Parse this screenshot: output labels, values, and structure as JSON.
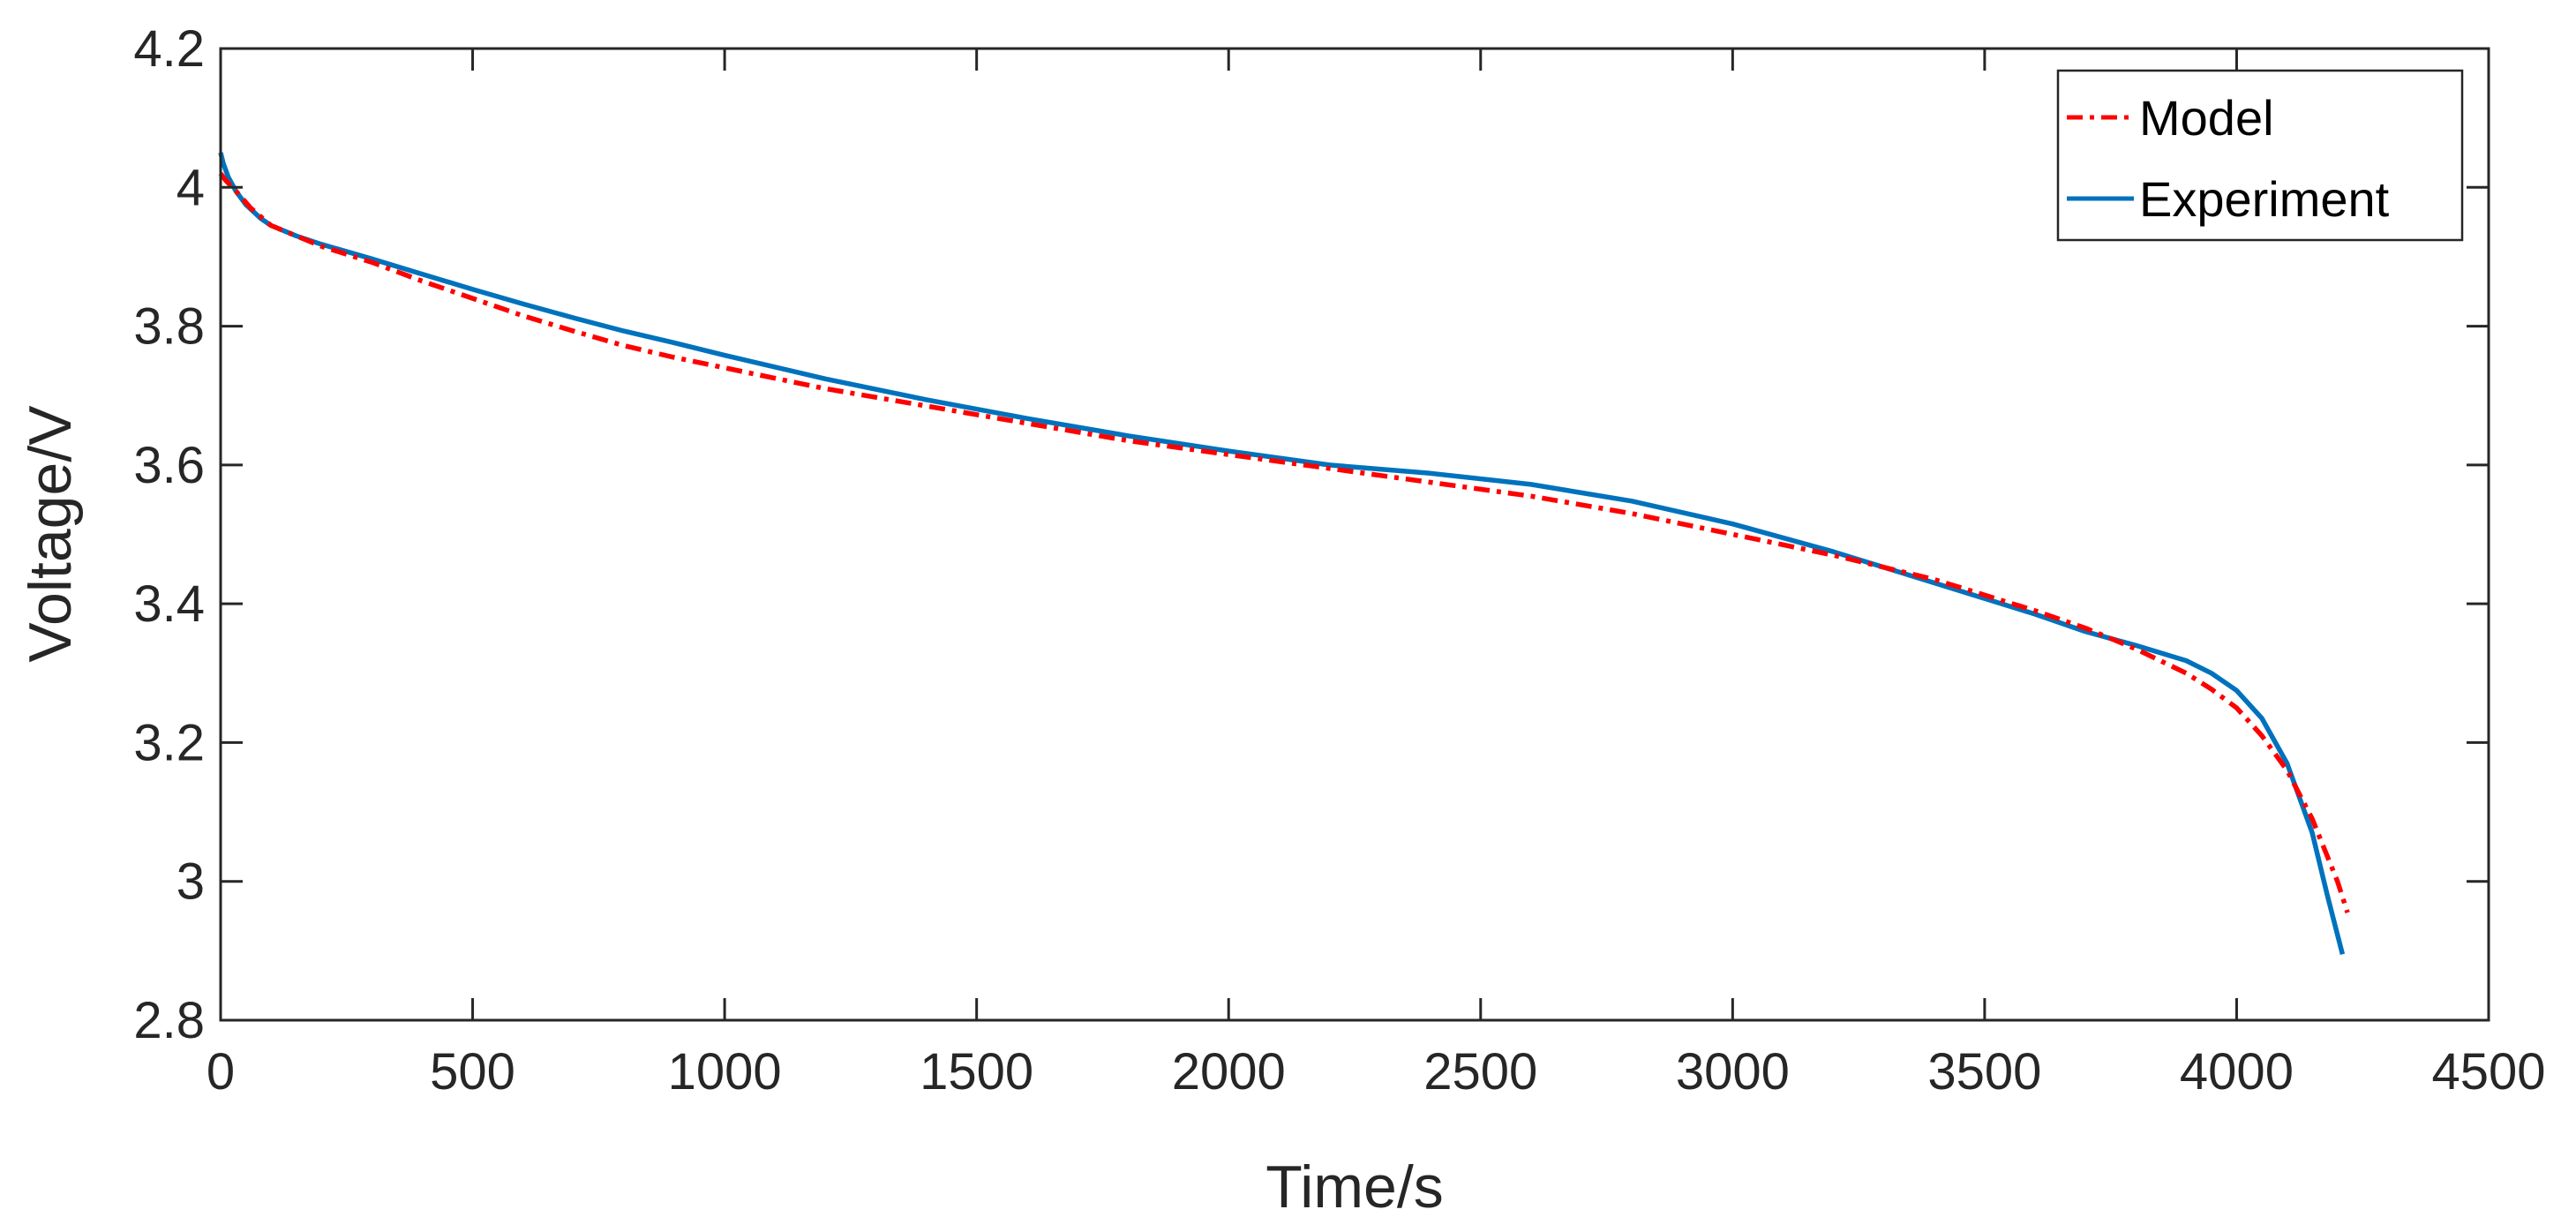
{
  "colors": {
    "model": "#ff0000",
    "experiment": "#0072bd",
    "axis": "#262626"
  },
  "chart_data": {
    "type": "line",
    "title": "",
    "xlabel": "Time/s",
    "ylabel": "Voltage/V",
    "xlim": [
      0,
      4500
    ],
    "ylim": [
      2.8,
      4.2
    ],
    "xticks": [
      0,
      500,
      1000,
      1500,
      2000,
      2500,
      3000,
      3500,
      4000,
      4500
    ],
    "xtick_labels": [
      "0",
      "500",
      "1000",
      "1500",
      "2000",
      "2500",
      "3000",
      "3500",
      "4000",
      "4500"
    ],
    "yticks": [
      2.8,
      3.0,
      3.2,
      3.4,
      3.6,
      3.8,
      4.0,
      4.2
    ],
    "ytick_labels": [
      "2.8",
      "3",
      "3.2",
      "3.4",
      "3.6",
      "3.8",
      "4",
      "4.2"
    ],
    "grid": false,
    "legend": {
      "placement": "top-right",
      "entries": [
        "Model",
        "Experiment"
      ]
    },
    "series": [
      {
        "name": "Model",
        "style": "dash-dot",
        "x": [
          0,
          10,
          30,
          60,
          100,
          150,
          200,
          300,
          400,
          500,
          600,
          700,
          800,
          900,
          1000,
          1200,
          1400,
          1600,
          1800,
          2000,
          2200,
          2400,
          2600,
          2800,
          3000,
          3200,
          3400,
          3600,
          3700,
          3800,
          3900,
          3950,
          4000,
          4050,
          4100,
          4150,
          4200,
          4220
        ],
        "y": [
          4.02,
          4.01,
          3.995,
          3.97,
          3.945,
          3.93,
          3.915,
          3.892,
          3.865,
          3.84,
          3.815,
          3.793,
          3.772,
          3.755,
          3.74,
          3.71,
          3.685,
          3.66,
          3.635,
          3.615,
          3.595,
          3.575,
          3.555,
          3.53,
          3.5,
          3.47,
          3.435,
          3.39,
          3.365,
          3.335,
          3.3,
          3.277,
          3.25,
          3.21,
          3.16,
          3.09,
          3.0,
          2.955
        ]
      },
      {
        "name": "Experiment",
        "style": "solid",
        "x": [
          0,
          5,
          15,
          30,
          50,
          80,
          100,
          150,
          200,
          300,
          400,
          500,
          600,
          700,
          800,
          900,
          1000,
          1200,
          1400,
          1600,
          1800,
          2000,
          2200,
          2400,
          2600,
          2800,
          3000,
          3200,
          3400,
          3600,
          3700,
          3800,
          3900,
          3950,
          4000,
          4050,
          4100,
          4150,
          4180,
          4210
        ],
        "y": [
          4.05,
          4.035,
          4.015,
          3.995,
          3.975,
          3.955,
          3.945,
          3.93,
          3.918,
          3.897,
          3.875,
          3.853,
          3.832,
          3.812,
          3.793,
          3.776,
          3.758,
          3.724,
          3.694,
          3.667,
          3.642,
          3.62,
          3.6,
          3.588,
          3.572,
          3.548,
          3.515,
          3.475,
          3.43,
          3.385,
          3.36,
          3.34,
          3.318,
          3.3,
          3.275,
          3.235,
          3.17,
          3.07,
          2.98,
          2.895
        ]
      }
    ]
  }
}
